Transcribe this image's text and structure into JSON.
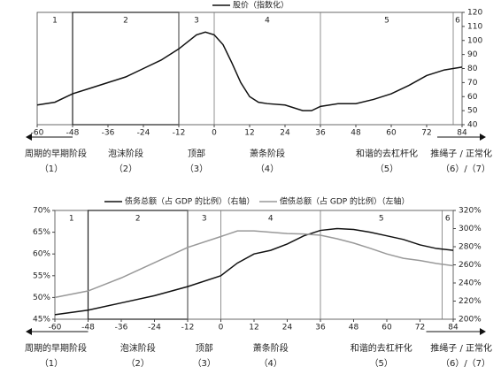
{
  "chart_data": [
    {
      "type": "line",
      "y_axis_side": "right",
      "xlim": [
        -60,
        84
      ],
      "xticks": [
        -60,
        -48,
        -36,
        -24,
        -12,
        0,
        12,
        24,
        36,
        48,
        60,
        72,
        84
      ],
      "ylim": [
        40,
        120
      ],
      "yticks": [
        40,
        50,
        60,
        70,
        80,
        90,
        100,
        110,
        120
      ],
      "x": [
        -60,
        -54,
        -48,
        -42,
        -36,
        -30,
        -24,
        -18,
        -12,
        -6,
        -3,
        0,
        3,
        6,
        9,
        12,
        15,
        18,
        24,
        30,
        33,
        36,
        42,
        48,
        54,
        60,
        66,
        72,
        78,
        84
      ],
      "series": [
        {
          "name": "股价（指数化）",
          "color": "#111",
          "axis": "y",
          "values": [
            54,
            56,
            62,
            66,
            70,
            74,
            80,
            86,
            94,
            104,
            106,
            104,
            97,
            84,
            70,
            60,
            56,
            55,
            54,
            50,
            50,
            53,
            55,
            55,
            58,
            62,
            68,
            75,
            79,
            81
          ]
        }
      ],
      "phases": [
        {
          "number": "1",
          "start": -60,
          "end": -48,
          "name": "周期的早期阶段",
          "tag": "（1）"
        },
        {
          "number": "2",
          "start": -48,
          "end": -12,
          "name": "泡沫阶段",
          "tag": "（2）",
          "boxed": true
        },
        {
          "number": "3",
          "start": -12,
          "end": 0,
          "name": "顶部",
          "tag": "（3）"
        },
        {
          "number": "4",
          "start": 0,
          "end": 36,
          "name": "萧条阶段",
          "tag": "（4）"
        },
        {
          "number": "5",
          "start": 36,
          "end": 81,
          "name": "和谐的去杠杆化",
          "tag": "（5）"
        },
        {
          "number": "6",
          "start": 81,
          "end": 84,
          "name": "推绳子 / 正常化",
          "tag": "（6）/（7）"
        }
      ]
    },
    {
      "type": "line",
      "xlim": [
        -60,
        84
      ],
      "xticks": [
        -60,
        -48,
        -36,
        -24,
        -12,
        0,
        12,
        24,
        36,
        48,
        60,
        72,
        84
      ],
      "ylim": [
        45,
        70
      ],
      "yticks": [
        {
          "value": 45,
          "label": "45%"
        },
        {
          "value": 50,
          "label": "50%"
        },
        {
          "value": 55,
          "label": "55%"
        },
        {
          "value": 60,
          "label": "60%"
        },
        {
          "value": 65,
          "label": "65%"
        },
        {
          "value": 70,
          "label": "70%"
        }
      ],
      "y2lim": [
        200,
        320
      ],
      "y2ticks": [
        {
          "value": 200,
          "label": "200%"
        },
        {
          "value": 220,
          "label": "220%"
        },
        {
          "value": 240,
          "label": "240%"
        },
        {
          "value": 260,
          "label": "260%"
        },
        {
          "value": 280,
          "label": "280%"
        },
        {
          "value": 300,
          "label": "300%"
        },
        {
          "value": 320,
          "label": "320%"
        }
      ],
      "x": [
        -60,
        -48,
        -36,
        -24,
        -12,
        0,
        6,
        12,
        18,
        24,
        30,
        36,
        42,
        48,
        54,
        60,
        66,
        72,
        78,
        84
      ],
      "series": [
        {
          "name": "债务总额（占 GDP 的比例）（右轴）",
          "color": "#111",
          "axis": "y2",
          "values": [
            205,
            210,
            218,
            226,
            236,
            248,
            262,
            272,
            276,
            283,
            292,
            298,
            300,
            299,
            296,
            292,
            288,
            282,
            278,
            276
          ]
        },
        {
          "name": "偿债总额（占 GDP 的比例）（左轴）",
          "color": "#999",
          "axis": "y",
          "values": [
            50,
            51.5,
            54.5,
            58,
            61.5,
            64,
            65.3,
            65.3,
            65,
            64.7,
            64.6,
            64.3,
            63.5,
            62.5,
            61.3,
            60,
            59,
            58.5,
            57.8,
            57.3
          ]
        }
      ],
      "phases": [
        {
          "number": "1",
          "start": -60,
          "end": -48,
          "name": "周期的早期阶段",
          "tag": "（1）"
        },
        {
          "number": "2",
          "start": -48,
          "end": -12,
          "name": "泡沫阶段",
          "tag": "（2）",
          "boxed": true
        },
        {
          "number": "3",
          "start": -12,
          "end": 0,
          "name": "顶部",
          "tag": "（3）"
        },
        {
          "number": "4",
          "start": 0,
          "end": 36,
          "name": "萧条阶段",
          "tag": "（4）"
        },
        {
          "number": "5",
          "start": 36,
          "end": 80,
          "name": "和谐的去杠杆化",
          "tag": "（5）"
        },
        {
          "number": "6",
          "start": 80,
          "end": 84,
          "name": "推绳子 / 正常化",
          "tag": "（6）/（7）"
        }
      ]
    }
  ]
}
